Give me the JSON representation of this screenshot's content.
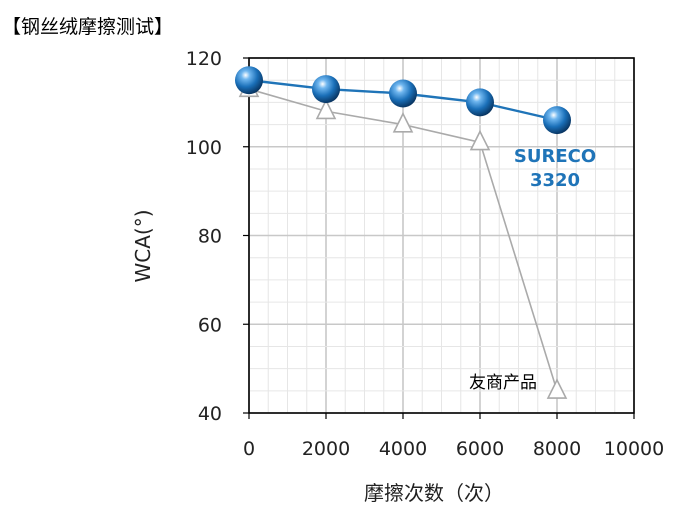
{
  "title": "【钢丝绒摩擦测试】",
  "chart_data": {
    "type": "line",
    "title": "【钢丝绒摩擦测试】",
    "xlabel": "摩擦次数（次）",
    "ylabel": "WCA(°)",
    "x": [
      0,
      2000,
      4000,
      6000,
      8000
    ],
    "xlim": [
      0,
      10000
    ],
    "ylim": [
      40,
      120
    ],
    "x_ticks": [
      0,
      2000,
      4000,
      6000,
      8000,
      10000
    ],
    "y_ticks": [
      40,
      60,
      80,
      100,
      120
    ],
    "grid": true,
    "series": [
      {
        "name": "SURECO 3320",
        "label_lines": [
          "SURECO",
          "3320"
        ],
        "values": [
          115,
          113,
          112,
          110,
          106
        ],
        "color": "#1f74b8",
        "marker": "sphere"
      },
      {
        "name": "友商产品",
        "label_lines": [
          "友商产品"
        ],
        "values": [
          113,
          108,
          105,
          101,
          45
        ],
        "color": "#aaaaaa",
        "marker": "open-triangle"
      }
    ]
  }
}
